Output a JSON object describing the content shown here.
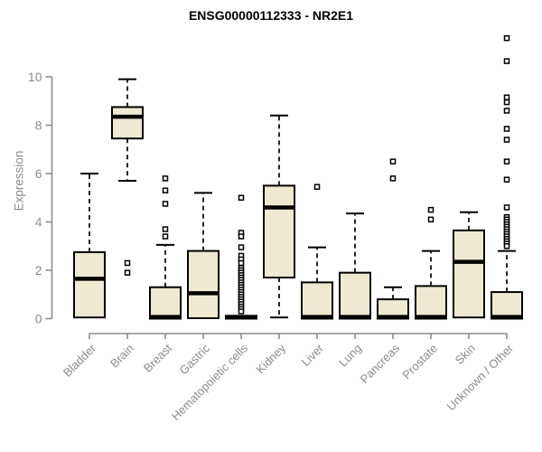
{
  "chart_data": {
    "type": "boxplot",
    "title": "ENSG00000112333 - NR2E1",
    "ylabel": "Expression",
    "xlabel": "",
    "yticks": [
      0,
      2,
      4,
      6,
      8,
      10
    ],
    "ylim": [
      0,
      11.7
    ],
    "grid": false,
    "legend": "none",
    "categories": [
      "Bladder",
      "Brain",
      "Breast",
      "Gastric",
      "Hematopoietic cells",
      "Kidney",
      "Liver",
      "Lung",
      "Pancreas",
      "Prostate",
      "Skin",
      "Unknown / Other"
    ],
    "series": [
      {
        "label": "Bladder",
        "whisker_low": 0.05,
        "q1": 0.05,
        "median": 1.65,
        "q3": 2.75,
        "whisker_high": 6.0,
        "outliers": []
      },
      {
        "label": "Brain",
        "whisker_low": 5.7,
        "q1": 7.45,
        "median": 8.35,
        "q3": 8.75,
        "whisker_high": 9.9,
        "outliers": [
          2.3,
          1.9
        ]
      },
      {
        "label": "Breast",
        "whisker_low": 0,
        "q1": 0,
        "median": 0.07,
        "q3": 1.3,
        "whisker_high": 3.05,
        "outliers": [
          5.8,
          5.3,
          4.75,
          3.7,
          3.4
        ]
      },
      {
        "label": "Gastric",
        "whisker_low": 0,
        "q1": 0.02,
        "median": 1.05,
        "q3": 2.8,
        "whisker_high": 5.2,
        "outliers": []
      },
      {
        "label": "Hematopoietic cells",
        "whisker_low": 0,
        "q1": 0,
        "median": 0.05,
        "q3": 0.12,
        "whisker_high": 0.15,
        "outliers": [
          5.0,
          3.55,
          3.4,
          2.95,
          2.6,
          2.45,
          2.3,
          2.1,
          2.0,
          1.9,
          1.8,
          1.7,
          1.6,
          1.5,
          1.4,
          1.3,
          1.2,
          1.1,
          1.0,
          0.9,
          0.8,
          0.7,
          0.6,
          0.5,
          0.4,
          0.3
        ]
      },
      {
        "label": "Kidney",
        "whisker_low": 0.05,
        "q1": 1.7,
        "median": 4.6,
        "q3": 5.5,
        "whisker_high": 8.4,
        "outliers": []
      },
      {
        "label": "Liver",
        "whisker_low": 0,
        "q1": 0,
        "median": 0.07,
        "q3": 1.5,
        "whisker_high": 2.95,
        "outliers": [
          5.45
        ]
      },
      {
        "label": "Lung",
        "whisker_low": 0,
        "q1": 0,
        "median": 0.07,
        "q3": 1.9,
        "whisker_high": 4.35,
        "outliers": []
      },
      {
        "label": "Pancreas",
        "whisker_low": 0,
        "q1": 0,
        "median": 0.07,
        "q3": 0.8,
        "whisker_high": 1.3,
        "outliers": [
          6.5,
          5.8
        ]
      },
      {
        "label": "Prostate",
        "whisker_low": 0,
        "q1": 0,
        "median": 0.07,
        "q3": 1.35,
        "whisker_high": 2.8,
        "outliers": [
          4.5,
          4.1
        ]
      },
      {
        "label": "Skin",
        "whisker_low": 0.05,
        "q1": 0.05,
        "median": 2.35,
        "q3": 3.65,
        "whisker_high": 4.4,
        "outliers": []
      },
      {
        "label": "Unknown / Other",
        "whisker_low": 0,
        "q1": 0,
        "median": 0.07,
        "q3": 1.1,
        "whisker_high": 2.8,
        "outliers": [
          11.6,
          10.65,
          9.15,
          8.95,
          8.6,
          7.85,
          7.4,
          6.5,
          5.75,
          4.6,
          4.2,
          4.1,
          4.0,
          3.9,
          3.8,
          3.7,
          3.6,
          3.5,
          3.4,
          3.3,
          3.2,
          3.1,
          3.0
        ]
      }
    ],
    "style": {
      "box_fill": "#EEE9D0",
      "box_stroke": "#000000",
      "median_color": "#000000",
      "whisker_color": "#000000",
      "outlier_fill": "#FFFFFF",
      "outlier_stroke": "#000000",
      "axis_color": "#8C8C8C",
      "title_color": "#000000",
      "background": "#FFFFFF"
    }
  }
}
